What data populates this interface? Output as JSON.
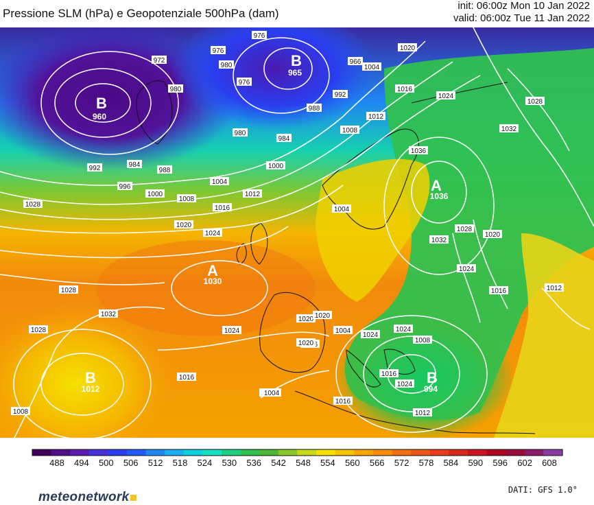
{
  "header": {
    "title": "Pressione SLM (hPa) e Geopotenziale 500hPa (dam)",
    "init": "init: 06:00z Mon 10 Jan 2022",
    "valid": "valid: 06:00z Tue 11 Jan 2022"
  },
  "map": {
    "pressure_centers": [
      {
        "type": "B",
        "value": "960"
      },
      {
        "type": "B",
        "value": "965"
      },
      {
        "type": "A",
        "value": "1030"
      },
      {
        "type": "A",
        "value": "1036"
      },
      {
        "type": "B",
        "value": "1012"
      },
      {
        "type": "B",
        "value": "994"
      }
    ],
    "isobar_labels": [
      "972",
      "976",
      "980",
      "976",
      "976",
      "980",
      "966",
      "1004",
      "992",
      "988",
      "984",
      "980",
      "1008",
      "1012",
      "1016",
      "1020",
      "1024",
      "1028",
      "1032",
      "1036",
      "1000",
      "996",
      "992",
      "984",
      "988",
      "1000",
      "1004",
      "1008",
      "1012",
      "1016",
      "1020",
      "1024",
      "1028",
      "1004",
      "1032",
      "1028",
      "1024",
      "1020",
      "1016",
      "1012",
      "1008",
      "1004",
      "1016",
      "1020",
      "1024",
      "1028",
      "1032",
      "1028",
      "1024",
      "1016",
      "1028",
      "1020",
      "1024",
      "1016",
      "1012",
      "1008",
      "1004",
      "1016",
      "1020",
      "1024"
    ]
  },
  "colorbar": {
    "ticks": [
      "488",
      "494",
      "500",
      "506",
      "512",
      "518",
      "524",
      "530",
      "536",
      "542",
      "548",
      "554",
      "560",
      "566",
      "572",
      "578",
      "584",
      "590",
      "596",
      "602",
      "608"
    ],
    "colors": [
      "#40005a",
      "#4e0e86",
      "#5a1ab0",
      "#4630d8",
      "#2a3ef0",
      "#1f5cf5",
      "#1e86f3",
      "#1aaef0",
      "#10cfe0",
      "#16e0c0",
      "#1ccf80",
      "#30c050",
      "#4ab835",
      "#8ac82a",
      "#c8d81c",
      "#f5e000",
      "#f5c400",
      "#f5a400",
      "#f58c0a",
      "#f07010",
      "#ec5616",
      "#e83c1a",
      "#d8281c",
      "#c81420",
      "#b00820",
      "#9c0a3a",
      "#8a1c68",
      "#8a3ca0"
    ]
  },
  "footer": {
    "logo": "meteonetwork",
    "source": "DATI: GFS 1.0°"
  }
}
